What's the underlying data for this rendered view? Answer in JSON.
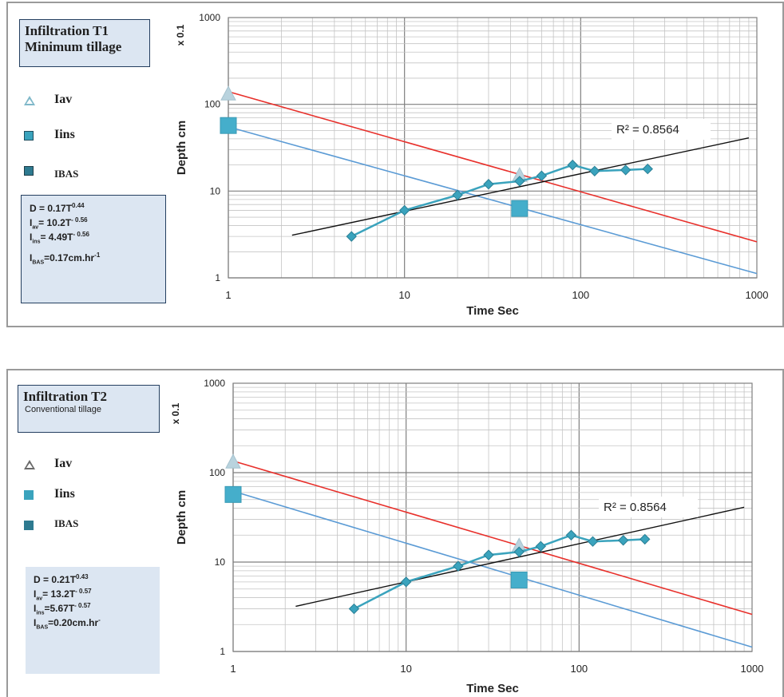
{
  "colors": {
    "red_line": "#e8302b",
    "blue_line": "#5b9bd5",
    "series_teal": "#3aa3bd",
    "trend_black": "#111111",
    "box_fill": "#dce6f2",
    "box_border": "#243f60"
  },
  "charts": [
    {
      "title_main": "Infiltration T1",
      "title_sub": "Minimum tillage",
      "legend": {
        "iav": "Iav",
        "iins": "Iins",
        "ibas": "IBAS"
      },
      "equations": {
        "d_base": "D = 0.17T",
        "d_exp": "0.44",
        "iav_pre": "I",
        "iav_sub": "av",
        "iav_base": "= 10.2T",
        "iav_exp": "- 0.56",
        "iins_pre": "I",
        "iins_sub": "ins",
        "iins_base": "= 4.49T",
        "iins_exp": "- 0.56",
        "ibas_pre": "I",
        "ibas_sub": "BAS",
        "ibas_base": "=0.17cm.hr",
        "ibas_exp": "-1"
      }
    },
    {
      "title_main": "Infiltration T2",
      "title_sub": "Conventional tillage",
      "legend": {
        "iav": "Iav",
        "iins": "Iins",
        "ibas": "IBAS"
      },
      "equations": {
        "d_base": "D = 0.21T",
        "d_exp": "0.43",
        "iav_pre": "I",
        "iav_sub": "av",
        "iav_base": "= 13.2T",
        "iav_exp": "- 0.57",
        "iins_pre": "I",
        "iins_sub": "ins",
        "iins_base": "=5.67T",
        "iins_exp": "- 0.57",
        "ibas_pre": "I",
        "ibas_sub": "BAS",
        "ibas_base": "=0.20cm.hr",
        "ibas_exp": "-"
      }
    }
  ],
  "chart_data": [
    {
      "type": "line",
      "x_scale": "log",
      "y_scale": "log",
      "xlim": [
        1,
        1000
      ],
      "ylim": [
        1,
        1000
      ],
      "xlabel": "Time Sec",
      "ylabel": "Depth cm",
      "ylabel_multiplier": "x 0.1",
      "x_ticks": [
        "1",
        "10",
        "100",
        "1000"
      ],
      "y_ticks": [
        "1",
        "10",
        "100",
        "1000"
      ],
      "grid": true,
      "r2_label": "R² = 0.8564",
      "series": [
        {
          "name": "Iav",
          "kind": "marker-triangle",
          "x": [
            1,
            45
          ],
          "y": [
            130,
            15
          ]
        },
        {
          "name": "Iins",
          "kind": "marker-square",
          "x": [
            1,
            45
          ],
          "y": [
            57,
            6.3
          ]
        },
        {
          "kind": "line-markers",
          "x": [
            5,
            10,
            20,
            30,
            45,
            60,
            90,
            120,
            180,
            240
          ],
          "y": [
            3,
            6,
            9,
            12,
            13,
            15,
            20,
            17,
            17.5,
            18
          ]
        },
        {
          "kind": "line",
          "x": [
            1,
            1000
          ],
          "y": [
            140,
            2.6
          ]
        },
        {
          "kind": "line",
          "x": [
            1,
            1000
          ],
          "y": [
            55,
            1.12
          ]
        },
        {
          "kind": "trend",
          "x": [
            2.3,
            900
          ],
          "y": [
            3.1,
            41
          ]
        }
      ]
    },
    {
      "type": "line",
      "x_scale": "log",
      "y_scale": "log",
      "xlim": [
        1,
        1000
      ],
      "ylim": [
        1,
        1000
      ],
      "xlabel": "Time Sec",
      "ylabel": "Depth cm",
      "ylabel_multiplier": "x 0.1",
      "x_ticks": [
        "1",
        "10",
        "100",
        "1000"
      ],
      "y_ticks": [
        "1",
        "10",
        "100",
        "1000"
      ],
      "grid": true,
      "r2_label": "R² = 0.8564",
      "series": [
        {
          "name": "Iav",
          "kind": "marker-triangle",
          "x": [
            1,
            45
          ],
          "y": [
            130,
            15
          ]
        },
        {
          "name": "Iins",
          "kind": "marker-square",
          "x": [
            1,
            45
          ],
          "y": [
            57,
            6.3
          ]
        },
        {
          "kind": "line-markers",
          "x": [
            5,
            10,
            20,
            30,
            45,
            60,
            90,
            120,
            180,
            240
          ],
          "y": [
            3,
            6,
            9,
            12,
            13,
            15,
            20,
            17,
            17.5,
            18
          ]
        },
        {
          "kind": "line",
          "x": [
            1,
            1000
          ],
          "y": [
            135,
            2.6
          ]
        },
        {
          "kind": "line",
          "x": [
            1,
            1000
          ],
          "y": [
            62,
            1.12
          ]
        },
        {
          "kind": "trend",
          "x": [
            2.3,
            900
          ],
          "y": [
            3.2,
            41
          ]
        }
      ]
    }
  ]
}
